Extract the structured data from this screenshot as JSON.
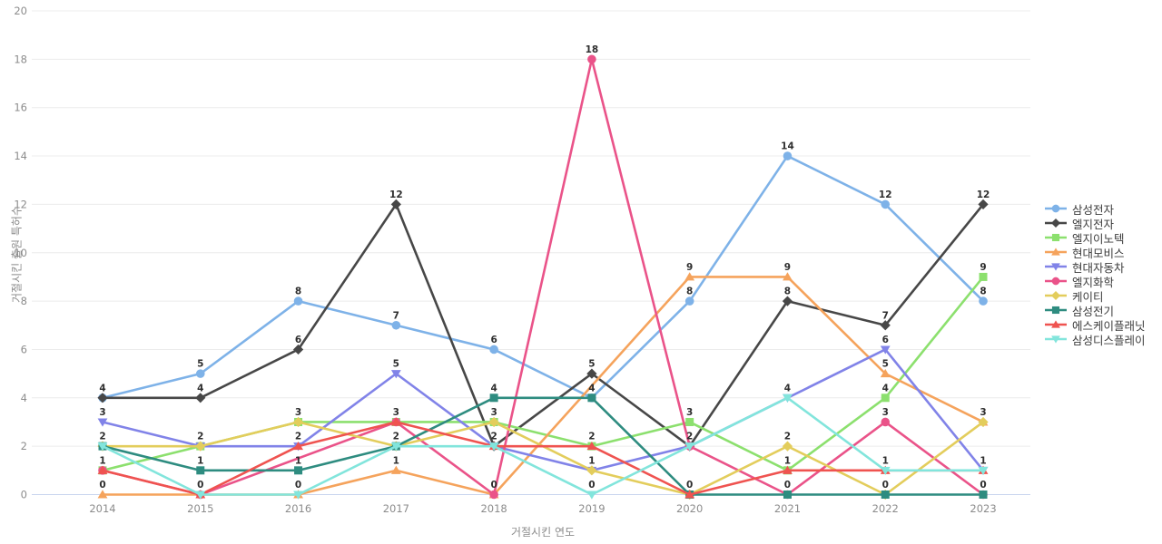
{
  "chart_data": {
    "type": "line",
    "title": "",
    "xlabel": "거절시킨 연도",
    "ylabel": "거절시킨 출원 특허수",
    "categories": [
      "2014",
      "2015",
      "2016",
      "2017",
      "2018",
      "2019",
      "2020",
      "2021",
      "2022",
      "2023"
    ],
    "ylim": [
      0,
      20
    ],
    "ytick_step": 2,
    "grid": true,
    "legend_position": "right",
    "series": [
      {
        "name": "삼성전자",
        "color": "#7EB2E8",
        "marker": "circle",
        "values": [
          4,
          5,
          8,
          7,
          6,
          4,
          8,
          14,
          12,
          8
        ]
      },
      {
        "name": "엘지전자",
        "color": "#474747",
        "marker": "diamond",
        "values": [
          4,
          4,
          6,
          12,
          2,
          5,
          2,
          8,
          7,
          12
        ]
      },
      {
        "name": "엘지이노텍",
        "color": "#8CE06E",
        "marker": "square",
        "values": [
          1,
          2,
          3,
          3,
          3,
          2,
          3,
          1,
          4,
          9
        ]
      },
      {
        "name": "현대모비스",
        "color": "#F5A35C",
        "marker": "triangle-up",
        "values": [
          0,
          0,
          0,
          1,
          0,
          null,
          9,
          9,
          5,
          3
        ]
      },
      {
        "name": "현대자동차",
        "color": "#8183E8",
        "marker": "triangle-down",
        "values": [
          3,
          2,
          2,
          5,
          2,
          1,
          2,
          4,
          6,
          1
        ]
      },
      {
        "name": "엘지화학",
        "color": "#EA5389",
        "marker": "circle",
        "values": [
          1,
          0,
          null,
          3,
          0,
          18,
          2,
          0,
          3,
          0
        ]
      },
      {
        "name": "케이티",
        "color": "#E3CD5C",
        "marker": "diamond",
        "values": [
          2,
          2,
          3,
          2,
          3,
          1,
          0,
          2,
          0,
          3
        ]
      },
      {
        "name": "삼성전기",
        "color": "#2E8C80",
        "marker": "square",
        "values": [
          2,
          1,
          1,
          2,
          4,
          4,
          0,
          0,
          0,
          0
        ]
      },
      {
        "name": "에스케이플래닛",
        "color": "#EF5350",
        "marker": "triangle-up",
        "values": [
          1,
          0,
          2,
          3,
          2,
          2,
          0,
          1,
          1,
          1
        ]
      },
      {
        "name": "삼성디스플레이",
        "color": "#82E5DC",
        "marker": "triangle-down",
        "values": [
          2,
          0,
          0,
          2,
          2,
          0,
          2,
          4,
          1,
          1
        ]
      }
    ],
    "colors": {
      "grid": "#ECECEC",
      "zero_line": "#C9D5EE",
      "tick_text": "#8c8c8c",
      "point_label": "#2e2e2e",
      "background": "#ffffff"
    }
  }
}
